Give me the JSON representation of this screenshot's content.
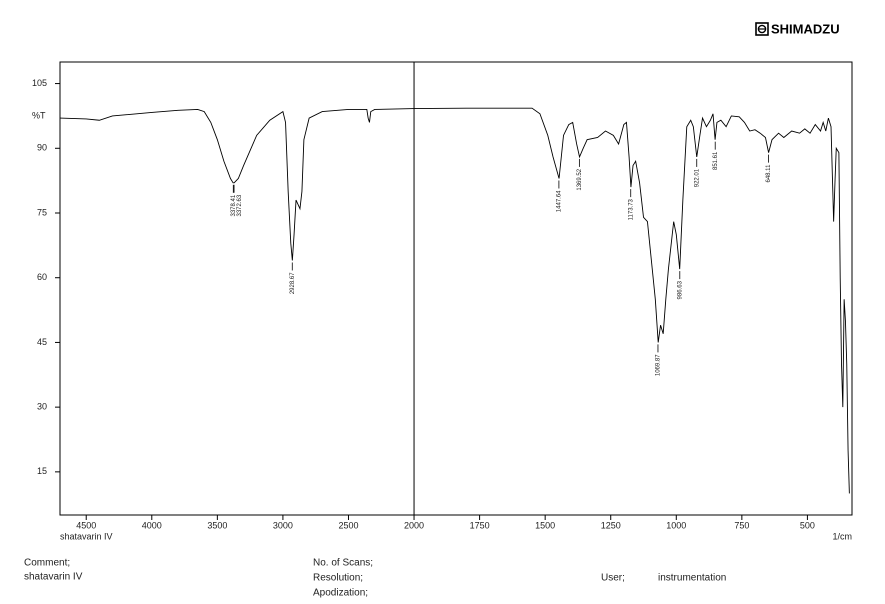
{
  "brand": "SHIMADZU",
  "chart_data": {
    "type": "line",
    "sample": "shatavarin IV",
    "xlabel": "1/cm",
    "ylabel": "%T",
    "color": "#000000",
    "xlim": [
      4700,
      330
    ],
    "xbreak": 2000,
    "scale_ratio": 2,
    "xticks": [
      4500,
      4000,
      3500,
      3000,
      2500,
      2000,
      1750,
      1500,
      1250,
      1000,
      750,
      500
    ],
    "ylim": [
      5,
      110
    ],
    "yticks": [
      15,
      30,
      45,
      60,
      75,
      90,
      105
    ],
    "x": [
      4700,
      4500,
      4400,
      4300,
      4000,
      3800,
      3650,
      3600,
      3550,
      3500,
      3450,
      3400,
      3380,
      3372,
      3340,
      3300,
      3200,
      3100,
      3000,
      2980,
      2960,
      2940,
      2928,
      2915,
      2900,
      2870,
      2855,
      2840,
      2800,
      2700,
      2500,
      2360,
      2350,
      2340,
      2330,
      2300,
      2000,
      1800,
      1550,
      1520,
      1490,
      1470,
      1447,
      1430,
      1410,
      1395,
      1380,
      1369,
      1355,
      1340,
      1300,
      1270,
      1240,
      1220,
      1200,
      1190,
      1180,
      1173,
      1165,
      1155,
      1140,
      1125,
      1110,
      1095,
      1080,
      1069,
      1060,
      1050,
      1040,
      1030,
      1010,
      1000,
      987,
      975,
      960,
      945,
      935,
      922,
      910,
      900,
      885,
      870,
      860,
      852,
      845,
      830,
      810,
      790,
      760,
      740,
      720,
      700,
      680,
      660,
      648,
      635,
      610,
      590,
      560,
      530,
      510,
      490,
      470,
      450,
      440,
      430,
      420,
      410,
      400,
      395,
      390,
      380,
      375,
      370,
      365,
      360,
      355,
      350,
      345,
      340
    ],
    "values": [
      97,
      96.8,
      96.5,
      97.5,
      98.3,
      98.8,
      99,
      98.5,
      96,
      92,
      87,
      83,
      82,
      82,
      83,
      86,
      93,
      96.5,
      98.5,
      96,
      80,
      68,
      64,
      70,
      78,
      76,
      80,
      92,
      97,
      98.5,
      99,
      99,
      97,
      96,
      98.5,
      99,
      99.2,
      99.3,
      99.3,
      98,
      93,
      88,
      83,
      93,
      95.5,
      96,
      91,
      88,
      90,
      92,
      92.5,
      94,
      93,
      91,
      95.5,
      96,
      88,
      81,
      86,
      87,
      82,
      74,
      73,
      64,
      55,
      45,
      49,
      47,
      55,
      62,
      73,
      70,
      62,
      78,
      95,
      96.5,
      95,
      88,
      93,
      97,
      95,
      96.5,
      98,
      92,
      96,
      96.5,
      95,
      97.5,
      97.3,
      96,
      94,
      94.3,
      93.5,
      92.5,
      89,
      92,
      93.5,
      92.5,
      94,
      93.5,
      94.5,
      93.5,
      95.5,
      94,
      96,
      94,
      97,
      95,
      73,
      82,
      90,
      89,
      60,
      40,
      30,
      55,
      50,
      40,
      20,
      10
    ],
    "peaks": [
      {
        "x": 3378.41,
        "y": 82
      },
      {
        "x": 3372.63,
        "y": 82
      },
      {
        "x": 2928.67,
        "y": 64
      },
      {
        "x": 1447.64,
        "y": 83
      },
      {
        "x": 1369.52,
        "y": 88
      },
      {
        "x": 1173.73,
        "y": 81
      },
      {
        "x": 1069.87,
        "y": 45
      },
      {
        "x": 986.63,
        "y": 62
      },
      {
        "x": 922.01,
        "y": 88
      },
      {
        "x": 851.61,
        "y": 92
      },
      {
        "x": 648.11,
        "y": 89
      }
    ]
  },
  "footer": {
    "comment_label": "Comment;",
    "comment": "shatavarin IV",
    "scans": "No. of Scans;",
    "resolution": "Resolution;",
    "apodization": "Apodization;",
    "user_label": "User;",
    "user": "instrumentation"
  }
}
